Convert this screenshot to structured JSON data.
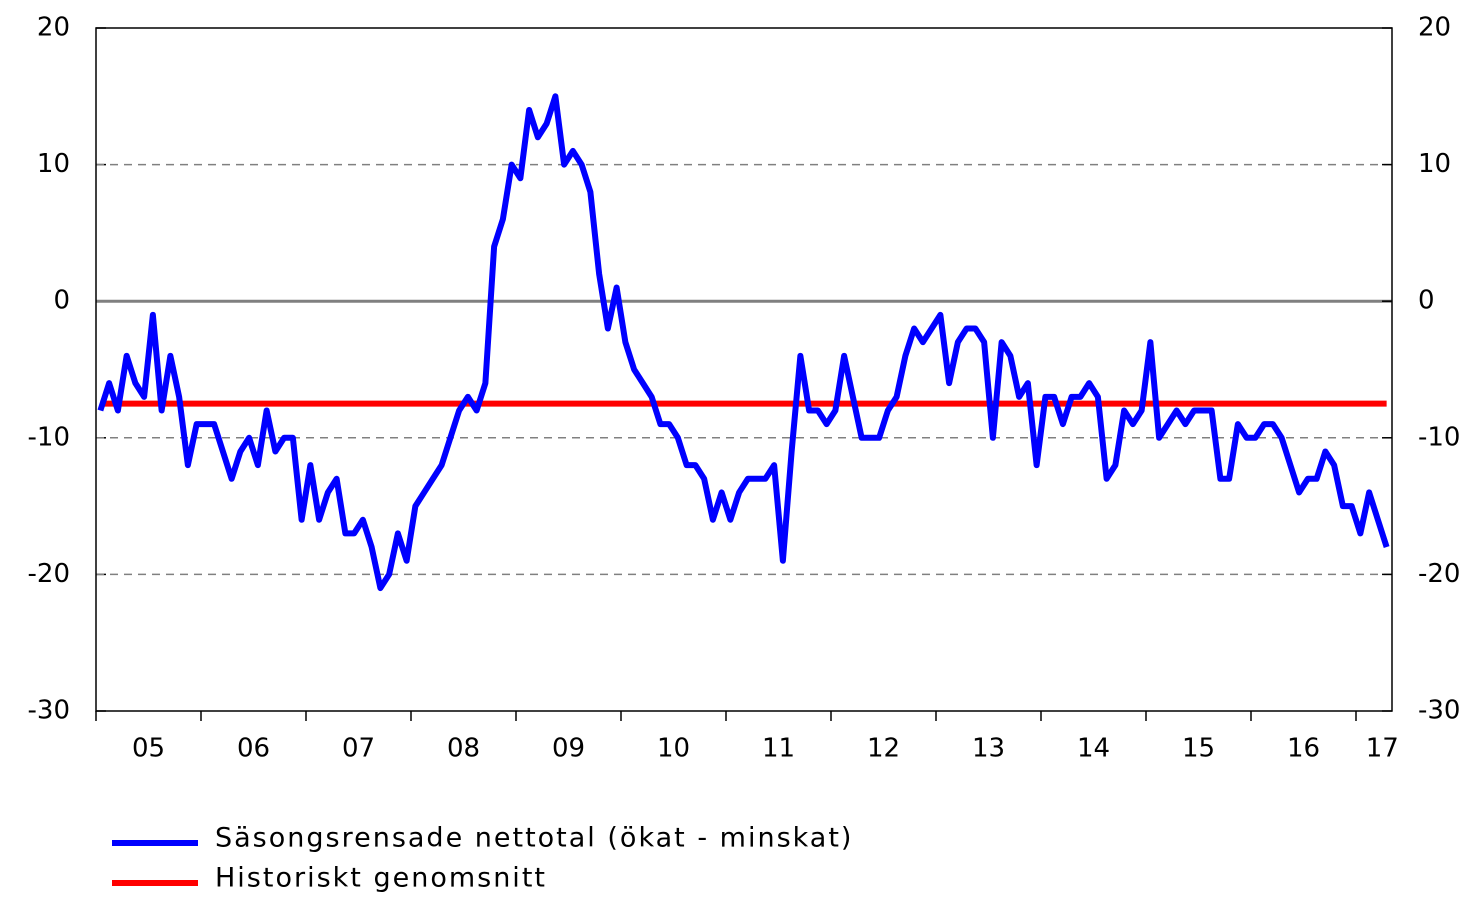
{
  "chart_data": {
    "type": "line",
    "categories": [
      null,
      null,
      null,
      null,
      null,
      null,
      "05",
      null,
      null,
      null,
      null,
      null,
      null,
      null,
      null,
      null,
      null,
      null,
      "06",
      null,
      null,
      null,
      null,
      null,
      null,
      null,
      null,
      null,
      null,
      null,
      "07",
      null,
      null,
      null,
      null,
      null,
      null,
      null,
      null,
      null,
      null,
      null,
      "08",
      null,
      null,
      null,
      null,
      null,
      null,
      null,
      null,
      null,
      null,
      null,
      "09",
      null,
      null,
      null,
      null,
      null,
      null,
      null,
      null,
      null,
      null,
      null,
      "10",
      null,
      null,
      null,
      null,
      null,
      null,
      null,
      null,
      null,
      null,
      null,
      "11",
      null,
      null,
      null,
      null,
      null,
      null,
      null,
      null,
      null,
      null,
      null,
      "12",
      null,
      null,
      null,
      null,
      null,
      null,
      null,
      null,
      null,
      null,
      null,
      "13",
      null,
      null,
      null,
      null,
      null,
      null,
      null,
      null,
      null,
      null,
      null,
      "14",
      null,
      null,
      null,
      null,
      null,
      null,
      null,
      null,
      null,
      null,
      null,
      "15",
      null,
      null,
      null,
      null,
      null,
      null,
      null,
      null,
      null,
      null,
      null,
      "16",
      null,
      null,
      null,
      null,
      null,
      null,
      null,
      null,
      "17"
    ],
    "series": [
      {
        "name": "Säsongsrensade nettotal (ökat - minskat)",
        "color": "#0000ff",
        "values": [
          -8,
          -6,
          -8,
          -4,
          -6,
          -7,
          -1,
          -8,
          -4,
          -7,
          -12,
          -9,
          -9,
          -9,
          -11,
          -13,
          -11,
          -10,
          -12,
          -8,
          -11,
          -10,
          -10,
          -16,
          -12,
          -16,
          -14,
          -13,
          -17,
          -17,
          -16,
          -18,
          -21,
          -20,
          -17,
          -19,
          -15,
          -14,
          -13,
          -12,
          -10,
          -8,
          -7,
          -8,
          -6,
          4,
          6,
          10,
          9,
          14,
          12,
          13,
          15,
          10,
          11,
          10,
          8,
          2,
          -2,
          1,
          -3,
          -5,
          -6,
          -7,
          -9,
          -9,
          -10,
          -12,
          -12,
          -13,
          -16,
          -14,
          -16,
          -14,
          -13,
          -13,
          -13,
          -12,
          -19,
          -11,
          -4,
          -8,
          -8,
          -9,
          -8,
          -4,
          -7,
          -10,
          -10,
          -10,
          -8,
          -7,
          -4,
          -2,
          -3,
          -2,
          -1,
          -6,
          -3,
          -2,
          -2,
          -3,
          -10,
          -3,
          -4,
          -7,
          -6,
          -12,
          -7,
          -7,
          -9,
          -7,
          -7,
          -6,
          -7,
          -13,
          -12,
          -8,
          -9,
          -8,
          -3,
          -10,
          -9,
          -8,
          -9,
          -8,
          -8,
          -8,
          -13,
          -13,
          -9,
          -10,
          -10,
          -9,
          -9,
          -10,
          -12,
          -14,
          -13,
          -13,
          -11,
          -12,
          -15,
          -15,
          -17,
          -14,
          -16,
          -18
        ]
      },
      {
        "name": "Historiskt genomsnitt",
        "color": "#ff0000",
        "values": [
          -7.5,
          -7.5,
          -7.5,
          -7.5,
          -7.5,
          -7.5,
          -7.5,
          -7.5,
          -7.5,
          -7.5,
          -7.5,
          -7.5,
          -7.5,
          -7.5,
          -7.5,
          -7.5,
          -7.5,
          -7.5,
          -7.5,
          -7.5,
          -7.5,
          -7.5,
          -7.5,
          -7.5,
          -7.5,
          -7.5,
          -7.5,
          -7.5,
          -7.5,
          -7.5,
          -7.5,
          -7.5,
          -7.5,
          -7.5,
          -7.5,
          -7.5,
          -7.5,
          -7.5,
          -7.5,
          -7.5,
          -7.5,
          -7.5,
          -7.5,
          -7.5,
          -7.5,
          -7.5,
          -7.5,
          -7.5,
          -7.5,
          -7.5,
          -7.5,
          -7.5,
          -7.5,
          -7.5,
          -7.5,
          -7.5,
          -7.5,
          -7.5,
          -7.5,
          -7.5,
          -7.5,
          -7.5,
          -7.5,
          -7.5,
          -7.5,
          -7.5,
          -7.5,
          -7.5,
          -7.5,
          -7.5,
          -7.5,
          -7.5,
          -7.5,
          -7.5,
          -7.5,
          -7.5,
          -7.5,
          -7.5,
          -7.5,
          -7.5,
          -7.5,
          -7.5,
          -7.5,
          -7.5,
          -7.5,
          -7.5,
          -7.5,
          -7.5,
          -7.5,
          -7.5,
          -7.5,
          -7.5,
          -7.5,
          -7.5,
          -7.5,
          -7.5,
          -7.5,
          -7.5,
          -7.5,
          -7.5,
          -7.5,
          -7.5,
          -7.5,
          -7.5,
          -7.5,
          -7.5,
          -7.5,
          -7.5,
          -7.5,
          -7.5,
          -7.5,
          -7.5,
          -7.5,
          -7.5,
          -7.5,
          -7.5,
          -7.5,
          -7.5,
          -7.5,
          -7.5,
          -7.5,
          -7.5,
          -7.5,
          -7.5,
          -7.5,
          -7.5,
          -7.5,
          -7.5,
          -7.5,
          -7.5,
          -7.5,
          -7.5,
          -7.5,
          -7.5,
          -7.5,
          -7.5,
          -7.5,
          -7.5,
          -7.5,
          -7.5,
          -7.5,
          -7.5,
          -7.5,
          -7.5,
          -7.5,
          -7.5,
          -7.5,
          -7.5
        ]
      }
    ],
    "ylim": [
      -30,
      20
    ],
    "yticks": [
      -30,
      -20,
      -10,
      0,
      10,
      20
    ],
    "y2lim": [
      -30,
      20
    ],
    "y2ticks": [
      -30,
      -20,
      -10,
      0,
      10,
      20
    ],
    "grid": true,
    "legend": "bottom"
  }
}
